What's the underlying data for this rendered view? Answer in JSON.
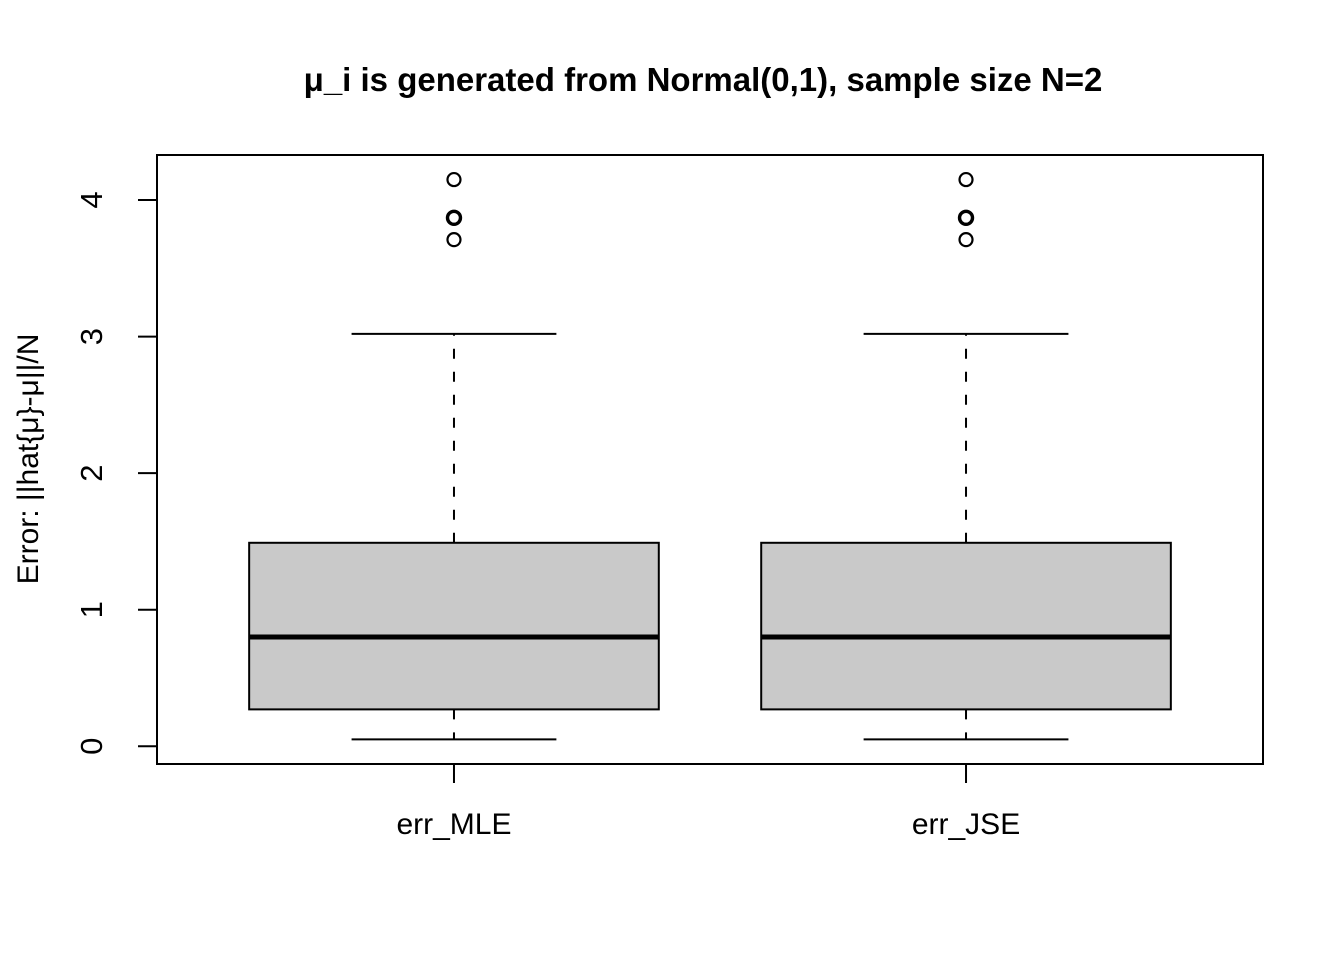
{
  "figure": {
    "background": "#ffffff"
  },
  "chart_data": {
    "type": "boxplot",
    "title": "μ_i is generated from Normal(0,1), sample size N=2",
    "xlabel": "",
    "ylabel": "Error: ||hat{μ}-μ||/N",
    "categories": [
      "err_MLE",
      "err_JSE"
    ],
    "y_ticks": [
      0,
      1,
      2,
      3,
      4
    ],
    "ylim": [
      -0.13,
      4.33
    ],
    "grid": false,
    "legend": "none",
    "orientation": "vertical",
    "colors": {
      "box_fill": "#c9c9c9",
      "stroke": "#000000",
      "background": "#ffffff"
    },
    "series": [
      {
        "name": "err_MLE",
        "stats": {
          "lower_whisker": 0.05,
          "q1": 0.27,
          "median": 0.8,
          "q3": 1.49,
          "upper_whisker": 3.02
        },
        "outliers": [
          3.71,
          3.87,
          4.15
        ],
        "outlier_bold": [
          false,
          true,
          false
        ]
      },
      {
        "name": "err_JSE",
        "stats": {
          "lower_whisker": 0.05,
          "q1": 0.27,
          "median": 0.8,
          "q3": 1.49,
          "upper_whisker": 3.02
        },
        "outliers": [
          3.71,
          3.87,
          4.15
        ],
        "outlier_bold": [
          false,
          true,
          false
        ]
      }
    ]
  }
}
